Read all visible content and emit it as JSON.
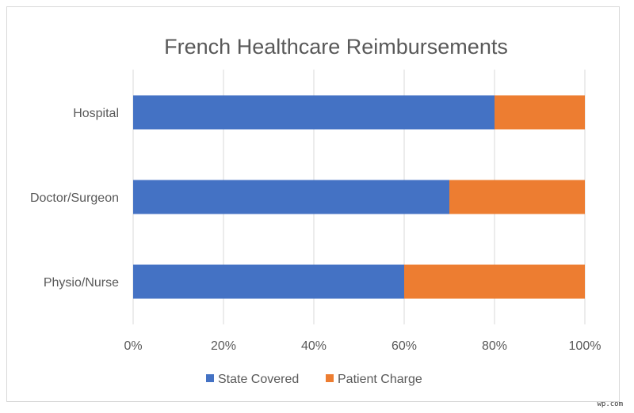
{
  "chart_data": {
    "type": "bar",
    "orientation": "horizontal",
    "stacked": true,
    "percent_stacked": true,
    "title": "French Healthcare Reimbursements",
    "categories": [
      "Hospital",
      "Doctor/Surgeon",
      "Physio/Nurse"
    ],
    "series": [
      {
        "name": "State Covered",
        "values": [
          80,
          70,
          60
        ],
        "color": "#4472c4"
      },
      {
        "name": "Patient Charge",
        "values": [
          20,
          30,
          40
        ],
        "color": "#ed7d31"
      }
    ],
    "xlim": [
      0,
      100
    ],
    "xticks": [
      "0%",
      "20%",
      "40%",
      "60%",
      "80%",
      "100%"
    ],
    "grid": true,
    "legend_position": "bottom"
  },
  "watermark": "wp.com"
}
